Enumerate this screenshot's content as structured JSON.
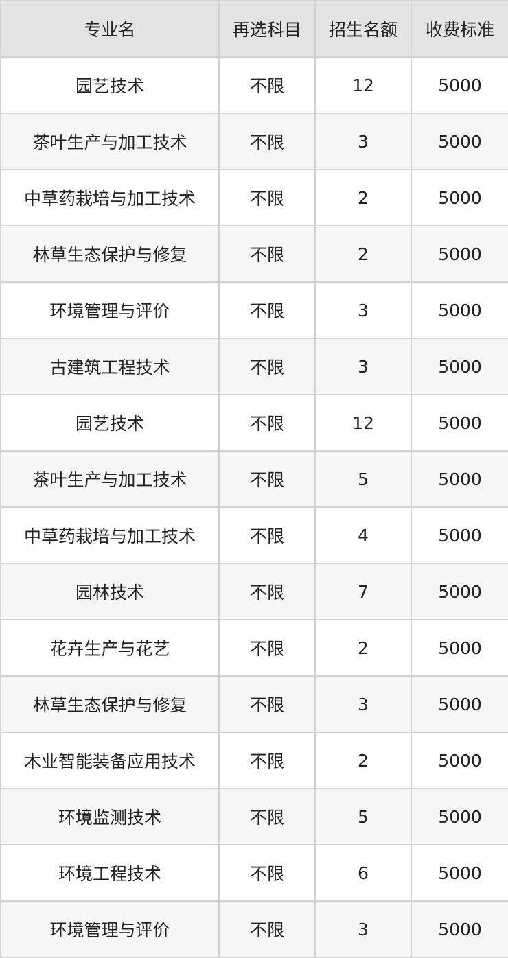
{
  "table": {
    "headers": [
      "专业名",
      "再选科目",
      "招生名额",
      "收费标准"
    ],
    "rows": [
      [
        "园艺技术",
        "不限",
        "12",
        "5000"
      ],
      [
        "茶叶生产与加工技术",
        "不限",
        "3",
        "5000"
      ],
      [
        "中草药栽培与加工技术",
        "不限",
        "2",
        "5000"
      ],
      [
        "林草生态保护与修复",
        "不限",
        "2",
        "5000"
      ],
      [
        "环境管理与评价",
        "不限",
        "3",
        "5000"
      ],
      [
        "古建筑工程技术",
        "不限",
        "3",
        "5000"
      ],
      [
        "园艺技术",
        "不限",
        "12",
        "5000"
      ],
      [
        "茶叶生产与加工技术",
        "不限",
        "5",
        "5000"
      ],
      [
        "中草药栽培与加工技术",
        "不限",
        "4",
        "5000"
      ],
      [
        "园林技术",
        "不限",
        "7",
        "5000"
      ],
      [
        "花卉生产与花艺",
        "不限",
        "2",
        "5000"
      ],
      [
        "林草生态保护与修复",
        "不限",
        "3",
        "5000"
      ],
      [
        "木业智能装备应用技术",
        "不限",
        "2",
        "5000"
      ],
      [
        "环境监测技术",
        "不限",
        "5",
        "5000"
      ],
      [
        "环境工程技术",
        "不限",
        "6",
        "5000"
      ],
      [
        "环境管理与评价",
        "不限",
        "3",
        "5000"
      ]
    ]
  }
}
